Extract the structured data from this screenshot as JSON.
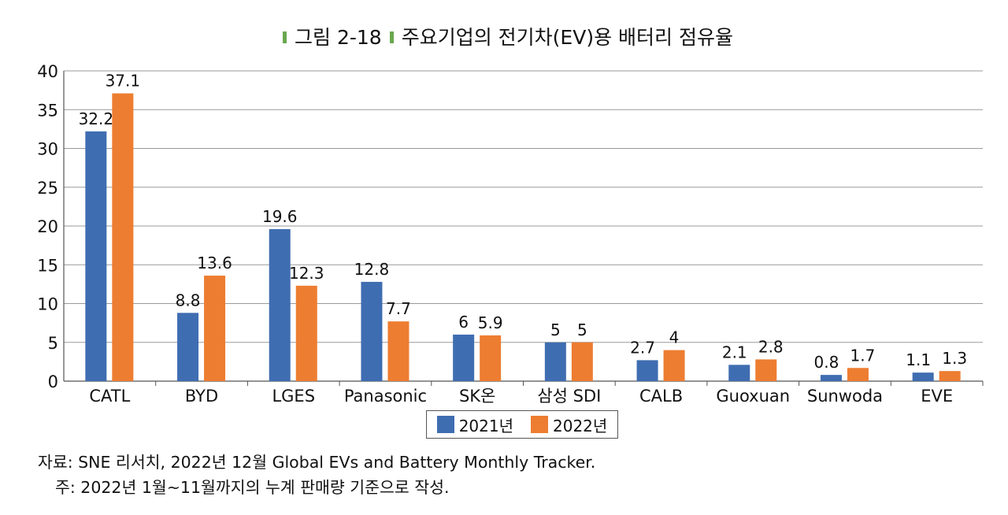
{
  "title": "그림 2-18 주요기업의 전기차(EV)용 배터리 점유율",
  "title_parts": {
    "figure": "그림 2-18",
    "text": "주요기업의 전기차(EV)용 배터리 점유율"
  },
  "colors": {
    "series_2021": "#3f6db1",
    "series_2022": "#ed7d31",
    "grid": "#9a9a9a",
    "title_mark": "#6aa84f"
  },
  "chart_data": {
    "type": "bar",
    "title": "주요기업의 전기차(EV)용 배터리 점유율",
    "xlabel": "",
    "ylabel": "",
    "ylim": [
      0,
      40
    ],
    "yticks": [
      0,
      5,
      10,
      15,
      20,
      25,
      30,
      35,
      40
    ],
    "grid": true,
    "legend_position": "bottom",
    "categories": [
      "CATL",
      "BYD",
      "LGES",
      "Panasonic",
      "SK온",
      "삼성 SDI",
      "CALB",
      "Guoxuan",
      "Sunwoda",
      "EVE"
    ],
    "series": [
      {
        "name": "2021년",
        "values": [
          32.2,
          8.8,
          19.6,
          12.8,
          6,
          5,
          2.7,
          2.1,
          0.8,
          1.1
        ]
      },
      {
        "name": "2022년",
        "values": [
          37.1,
          13.6,
          12.3,
          7.7,
          5.9,
          5,
          4,
          2.8,
          1.7,
          1.3
        ]
      }
    ]
  },
  "legend": {
    "series_2021": "2021년",
    "series_2022": "2022년"
  },
  "notes": {
    "source": "자료: SNE 리서치, 2022년 12월 Global EVs and Battery Monthly Tracker.",
    "note": "주: 2022년 1월~11월까지의 누계 판매량 기준으로 작성."
  }
}
